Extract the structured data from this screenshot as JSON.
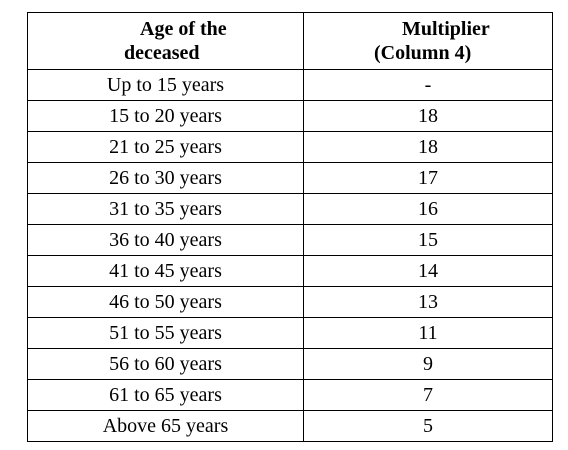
{
  "table": {
    "headers": {
      "age_line1": "Age of the",
      "age_line2": "deceased",
      "mult_line1": "Multiplier",
      "mult_line2": "(Column 4)"
    },
    "rows": [
      {
        "age": "Up to 15 years",
        "multiplier": "-"
      },
      {
        "age": "15 to 20 years",
        "multiplier": "18"
      },
      {
        "age": "21 to 25 years",
        "multiplier": "18"
      },
      {
        "age": "26 to 30 years",
        "multiplier": "17"
      },
      {
        "age": "31 to 35 years",
        "multiplier": "16"
      },
      {
        "age": "36 to 40 years",
        "multiplier": "15"
      },
      {
        "age": "41 to 45 years",
        "multiplier": "14"
      },
      {
        "age": "46 to 50 years",
        "multiplier": "13"
      },
      {
        "age": "51 to 55 years",
        "multiplier": "11"
      },
      {
        "age": "56 to 60 years",
        "multiplier": "9"
      },
      {
        "age": "61 to 65 years",
        "multiplier": "7"
      },
      {
        "age": "Above 65 years",
        "multiplier": "5"
      }
    ]
  }
}
